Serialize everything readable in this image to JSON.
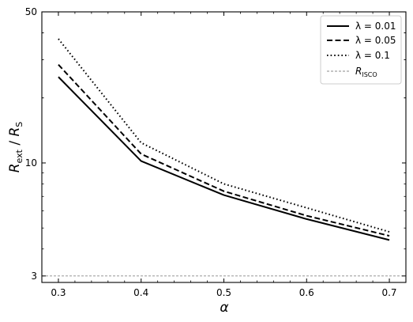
{
  "chart_data": {
    "type": "line",
    "x": [
      0.3,
      0.4,
      0.5,
      0.6,
      0.7
    ],
    "xlabel": "α",
    "ylabel_main": "R",
    "ylabel_main_sub": "ext",
    "ylabel_sep": " / ",
    "ylabel_den": "R",
    "ylabel_den_sub": "S",
    "xlim": [
      0.28,
      0.72
    ],
    "ylim": [
      2.8,
      50
    ],
    "yscale": "log",
    "x_ticks": [
      "0.3",
      "0.4",
      "0.5",
      "0.6",
      "0.7"
    ],
    "y_ticks": [
      "3",
      "10",
      "50"
    ],
    "legend_placement": "top-right",
    "series": [
      {
        "name": "λ = 0.01",
        "style": "solid",
        "values": [
          25.0,
          10.2,
          7.1,
          5.5,
          4.4
        ]
      },
      {
        "name": "λ = 0.05",
        "style": "dashed",
        "values": [
          28.5,
          11.0,
          7.4,
          5.7,
          4.6
        ]
      },
      {
        "name": "λ = 0.1",
        "style": "dotted",
        "values": [
          37.5,
          12.4,
          8.0,
          6.2,
          4.8
        ]
      }
    ],
    "reference_line": {
      "name": "R",
      "name_sub": "ISCO",
      "value": 3,
      "color": "#888888",
      "style": "dashed"
    }
  }
}
